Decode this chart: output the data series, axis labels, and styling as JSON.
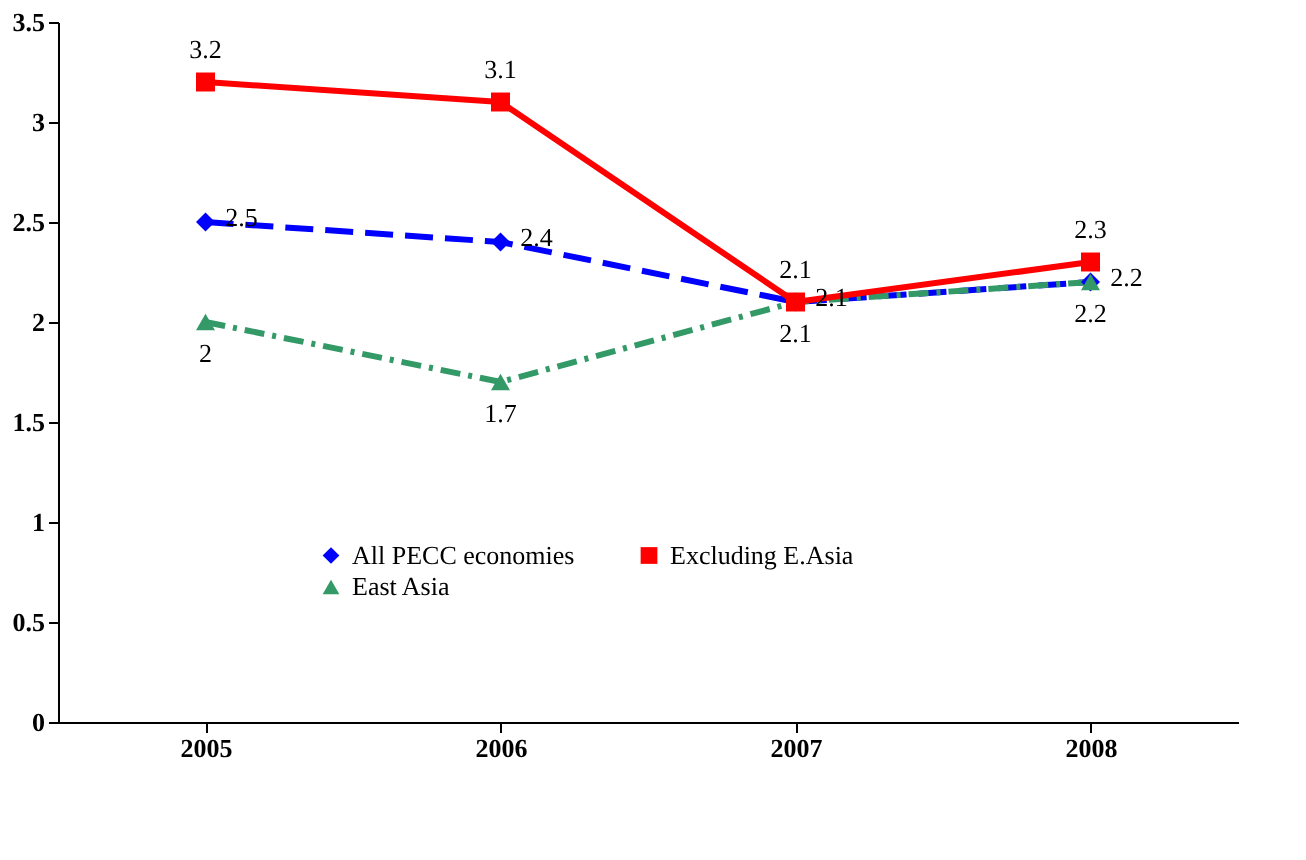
{
  "chart_data": {
    "type": "line",
    "categories": [
      "2005",
      "2006",
      "2007",
      "2008"
    ],
    "series": [
      {
        "name": "All PECC economies",
        "color": "#0000ff",
        "values": [
          2.5,
          2.4,
          2.1,
          2.2
        ],
        "line_style": "dashed",
        "marker": "diamond"
      },
      {
        "name": "East Asia",
        "color": "#339966",
        "values": [
          2,
          1.7,
          2.1,
          2.2
        ],
        "line_style": "dashdot",
        "marker": "triangle"
      },
      {
        "name": "Excluding E.Asia",
        "color": "#ff0000",
        "values": [
          3.2,
          3.1,
          2.1,
          2.3
        ],
        "line_style": "solid",
        "marker": "square"
      }
    ],
    "ylim": [
      0,
      3.5
    ],
    "yticks": [
      0,
      0.5,
      1,
      1.5,
      2,
      2.5,
      3,
      3.5
    ],
    "grid": false,
    "legend": "bottom",
    "data_labels": true
  }
}
